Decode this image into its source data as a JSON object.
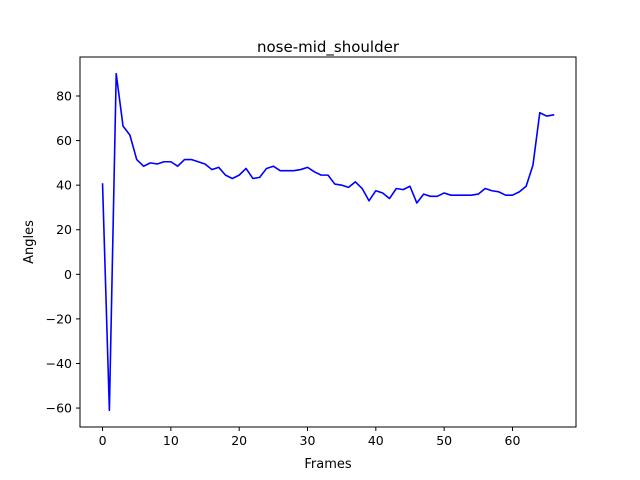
{
  "chart_data": {
    "type": "line",
    "title": "nose-mid_shoulder",
    "xlabel": "Frames",
    "ylabel": "Angles",
    "xlim": [
      -3.3,
      69.3
    ],
    "ylim": [
      -68.5,
      97.5
    ],
    "xticks": [
      0,
      10,
      20,
      30,
      40,
      50,
      60
    ],
    "yticks": [
      -60,
      -40,
      -20,
      0,
      20,
      40,
      60,
      80
    ],
    "ytick_labels": [
      "−60",
      "−40",
      "−20",
      "0",
      "20",
      "40",
      "60",
      "80"
    ],
    "grid": false,
    "series": [
      {
        "color": "#0000ff",
        "x": [
          0,
          1,
          2,
          3,
          4,
          5,
          6,
          7,
          8,
          9,
          10,
          11,
          12,
          13,
          14,
          15,
          16,
          17,
          18,
          19,
          20,
          21,
          22,
          23,
          24,
          25,
          26,
          27,
          28,
          29,
          30,
          31,
          32,
          33,
          34,
          35,
          36,
          37,
          38,
          39,
          40,
          41,
          42,
          43,
          44,
          45,
          46,
          47,
          48,
          49,
          50,
          51,
          52,
          53,
          54,
          55,
          56,
          57,
          58,
          59,
          60,
          61,
          62,
          63,
          64,
          65,
          66
        ],
        "values": [
          40.5,
          -61,
          90,
          66.5,
          62.5,
          51.5,
          48.5,
          50,
          49.5,
          50.5,
          50.5,
          48.5,
          51.5,
          51.5,
          50.5,
          49.5,
          47,
          48,
          44.5,
          43,
          44.5,
          47.5,
          43,
          43.5,
          47.5,
          48.5,
          46.5,
          46.5,
          46.5,
          47,
          48,
          46,
          44.5,
          44.5,
          40.5,
          40,
          39,
          41.5,
          38.5,
          33,
          37.5,
          36.5,
          34,
          38.5,
          38,
          39.5,
          32,
          36,
          35,
          35,
          36.5,
          35.5,
          35.5,
          35.5,
          35.5,
          36,
          38.5,
          37.5,
          37,
          35.5,
          35.5,
          37,
          39.5,
          49,
          72.5,
          71,
          71.5
        ]
      }
    ]
  }
}
